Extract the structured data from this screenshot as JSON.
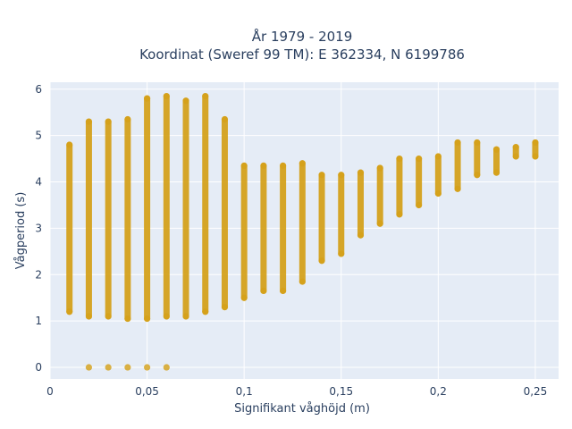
{
  "chart_data": {
    "type": "scatter",
    "title": "År 1979 - 2019",
    "subtitle": "Koordinat (Sweref 99 TM): E 362334, N 6199786",
    "xlabel": "Signifikant våghöjd (m)",
    "ylabel": "Vågperiod (s)",
    "xlim": [
      0,
      0.262
    ],
    "ylim": [
      -0.25,
      6.15
    ],
    "x_ticks": [
      0,
      0.05,
      0.1,
      0.15,
      0.2,
      0.25
    ],
    "x_tick_labels": [
      "0",
      "0,05",
      "0,1",
      "0,15",
      "0,2",
      "0,25"
    ],
    "y_ticks": [
      0,
      1,
      2,
      3,
      4,
      5,
      6
    ],
    "y_tick_labels": [
      "0",
      "1",
      "2",
      "3",
      "4",
      "5",
      "6"
    ],
    "grid": true,
    "marker_color": "#d4a017",
    "plot_bgcolor": "#e5ecf6",
    "columns": [
      {
        "x": 0.01,
        "ymin": 1.2,
        "ymax": 4.8
      },
      {
        "x": 0.02,
        "ymin": 1.1,
        "ymax": 5.3,
        "zero": true
      },
      {
        "x": 0.03,
        "ymin": 1.1,
        "ymax": 5.3,
        "zero": true
      },
      {
        "x": 0.04,
        "ymin": 1.05,
        "ymax": 5.35,
        "zero": true
      },
      {
        "x": 0.05,
        "ymin": 1.05,
        "ymax": 5.8,
        "zero": true
      },
      {
        "x": 0.06,
        "ymin": 1.1,
        "ymax": 5.85,
        "zero": true
      },
      {
        "x": 0.07,
        "ymin": 1.1,
        "ymax": 5.75
      },
      {
        "x": 0.08,
        "ymin": 1.2,
        "ymax": 5.85
      },
      {
        "x": 0.09,
        "ymin": 1.3,
        "ymax": 5.35
      },
      {
        "x": 0.1,
        "ymin": 1.5,
        "ymax": 4.35
      },
      {
        "x": 0.11,
        "ymin": 1.65,
        "ymax": 4.35
      },
      {
        "x": 0.12,
        "ymin": 1.65,
        "ymax": 4.35
      },
      {
        "x": 0.13,
        "ymin": 1.85,
        "ymax": 4.4
      },
      {
        "x": 0.14,
        "ymin": 2.3,
        "ymax": 4.15
      },
      {
        "x": 0.15,
        "ymin": 2.45,
        "ymax": 4.15
      },
      {
        "x": 0.16,
        "ymin": 2.85,
        "ymax": 4.2
      },
      {
        "x": 0.17,
        "ymin": 3.1,
        "ymax": 4.3
      },
      {
        "x": 0.18,
        "ymin": 3.3,
        "ymax": 4.5
      },
      {
        "x": 0.19,
        "ymin": 3.5,
        "ymax": 4.5
      },
      {
        "x": 0.2,
        "ymin": 3.75,
        "ymax": 4.55
      },
      {
        "x": 0.21,
        "ymin": 3.85,
        "ymax": 4.85
      },
      {
        "x": 0.22,
        "ymin": 4.15,
        "ymax": 4.85
      },
      {
        "x": 0.23,
        "ymin": 4.2,
        "ymax": 4.7
      },
      {
        "x": 0.24,
        "ymin": 4.55,
        "ymax": 4.75
      },
      {
        "x": 0.25,
        "ymin": 4.55,
        "ymax": 4.85
      }
    ]
  }
}
